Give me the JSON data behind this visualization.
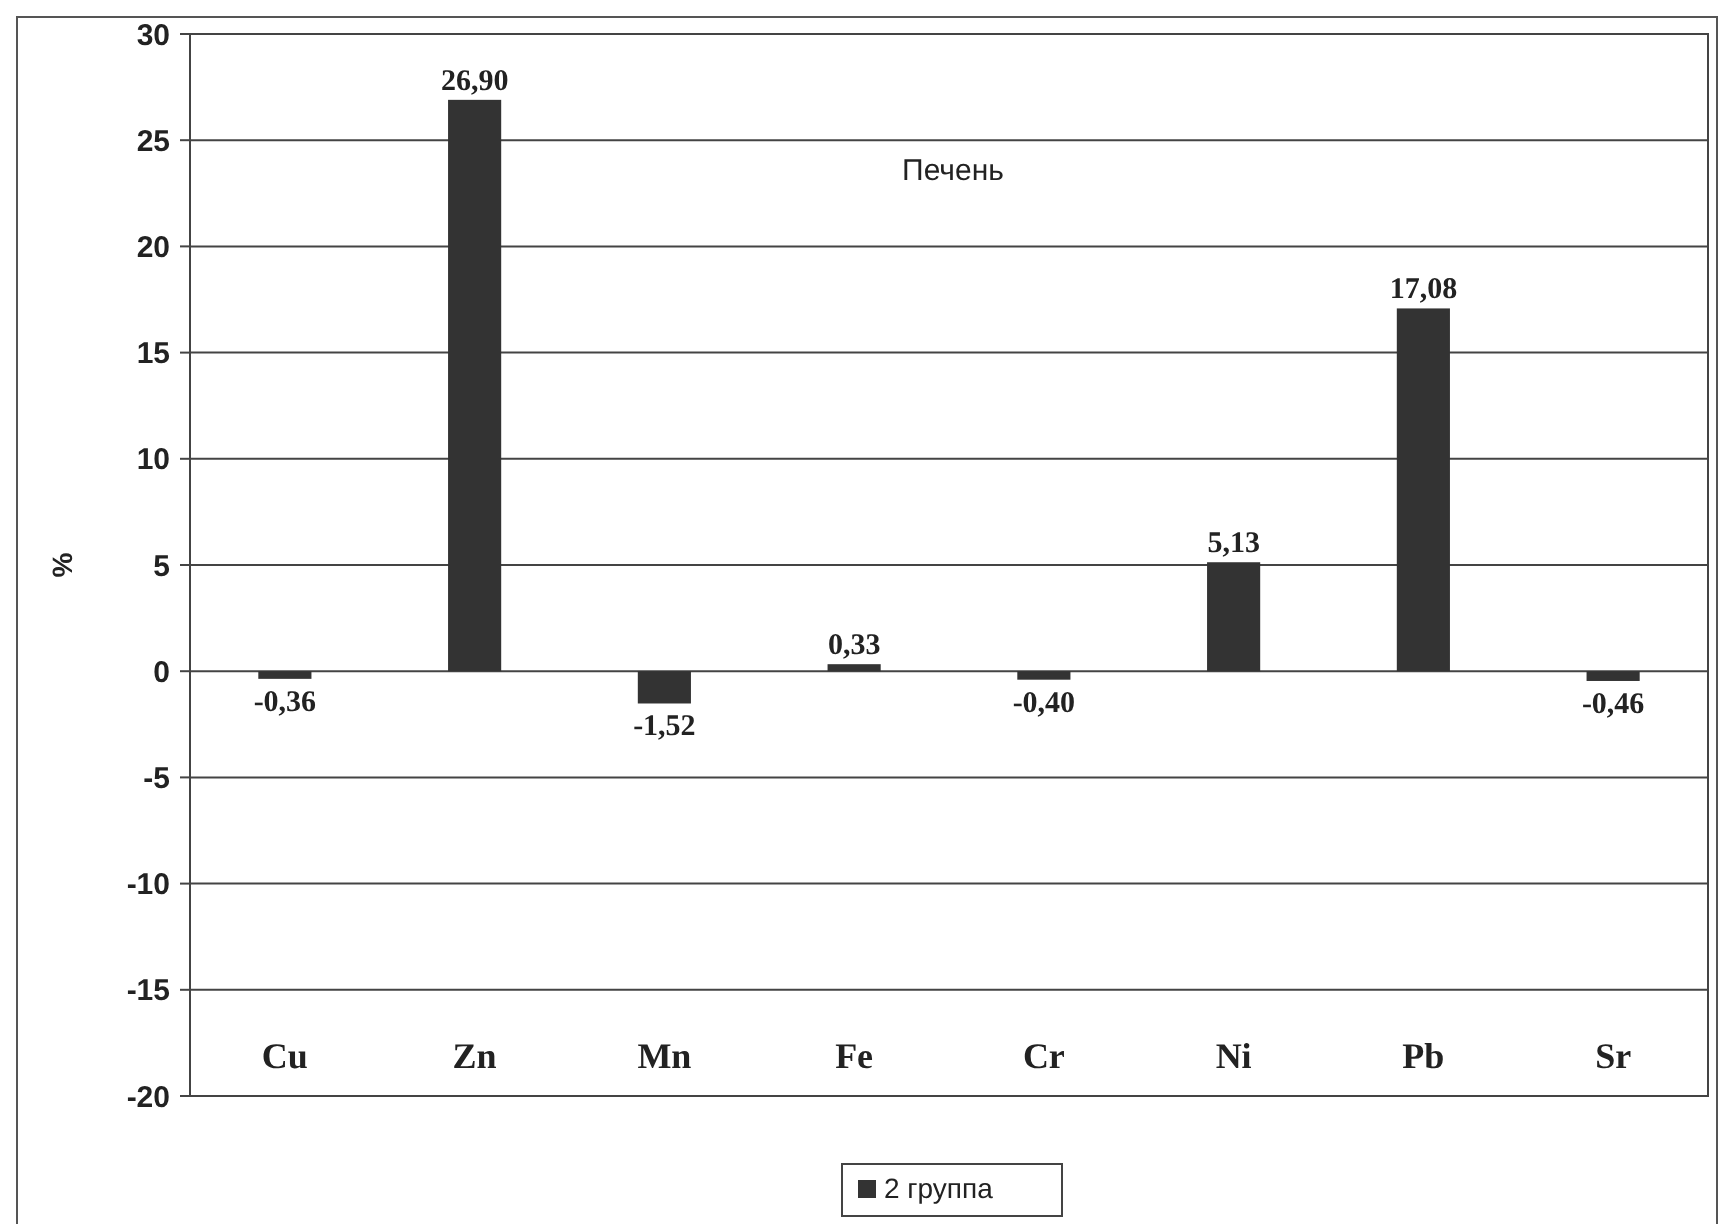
{
  "chart_data": {
    "type": "bar",
    "title": "Печень",
    "ylabel": "%",
    "categories": [
      "Cu",
      "Zn",
      "Mn",
      "Fe",
      "Cr",
      "Ni",
      "Pb",
      "Sr"
    ],
    "series": [
      {
        "name": "2 группа",
        "color": "#333333",
        "values": [
          -0.36,
          26.9,
          -1.52,
          0.33,
          -0.4,
          5.13,
          17.08,
          -0.46
        ],
        "value_labels": [
          "-0,36",
          "26,90",
          "-1,52",
          "0,33",
          "-0,40",
          "5,13",
          "17,08",
          "-0,46"
        ]
      }
    ],
    "ylim": [
      -20,
      30
    ],
    "yticks": [
      -20,
      -15,
      -10,
      -5,
      0,
      5,
      10,
      15,
      20,
      25,
      30
    ],
    "grid": "y",
    "legend": "bottom"
  }
}
